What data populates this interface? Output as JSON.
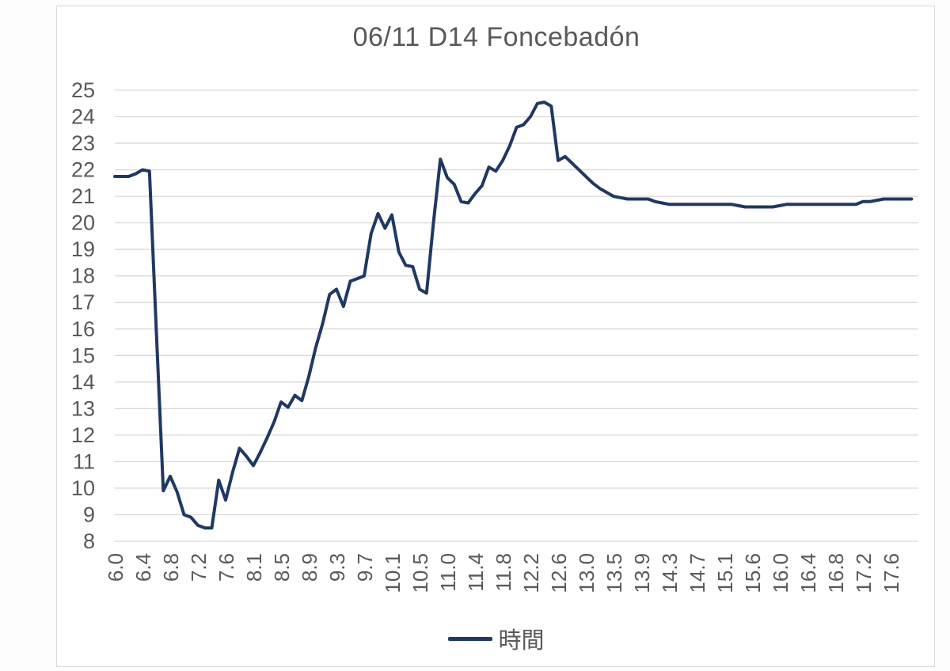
{
  "chart_data": {
    "type": "line",
    "title": "06/11 D14 Foncebadón",
    "x_labels": [
      "6.0",
      "6.4",
      "6.8",
      "7.2",
      "7.6",
      "8.1",
      "8.5",
      "8.9",
      "9.3",
      "9.7",
      "10.1",
      "10.5",
      "11.0",
      "11.4",
      "11.8",
      "12.2",
      "12.6",
      "13.0",
      "13.5",
      "13.9",
      "14.3",
      "14.7",
      "15.1",
      "15.6",
      "16.0",
      "16.4",
      "16.8",
      "17.2",
      "17.6"
    ],
    "label_every_n_points": 4,
    "y_axis": {
      "min": 8,
      "max": 25,
      "step": 1
    },
    "grid": "horizontal-only",
    "legend_position": "bottom-center",
    "series": [
      {
        "name": "時間",
        "color": "#1f3864",
        "values": [
          21.75,
          21.75,
          21.75,
          21.85,
          22,
          21.95,
          15.9,
          9.9,
          10.45,
          9.85,
          9,
          8.9,
          8.6,
          8.5,
          8.5,
          10.3,
          9.55,
          10.6,
          11.5,
          11.2,
          10.85,
          11.35,
          11.9,
          12.5,
          13.25,
          13.05,
          13.5,
          13.3,
          14.2,
          15.3,
          16.2,
          17.3,
          17.5,
          16.85,
          17.8,
          17.9,
          18,
          19.6,
          20.35,
          19.8,
          20.3,
          18.9,
          18.4,
          18.35,
          17.5,
          17.35,
          20,
          22.4,
          21.7,
          21.45,
          20.8,
          20.75,
          21.1,
          21.4,
          22.1,
          21.95,
          22.35,
          22.9,
          23.6,
          23.7,
          24,
          24.5,
          24.55,
          24.4,
          22.35,
          22.5,
          22.25,
          22,
          21.75,
          21.5,
          21.3,
          21.15,
          21,
          20.95,
          20.9,
          20.9,
          20.9,
          20.9,
          20.8,
          20.75,
          20.7,
          20.7,
          20.7,
          20.7,
          20.7,
          20.7,
          20.7,
          20.7,
          20.7,
          20.7,
          20.65,
          20.6,
          20.6,
          20.6,
          20.6,
          20.6,
          20.65,
          20.7,
          20.7,
          20.7,
          20.7,
          20.7,
          20.7,
          20.7,
          20.7,
          20.7,
          20.7,
          20.7,
          20.8,
          20.8,
          20.85,
          20.9,
          20.9,
          20.9,
          20.9,
          20.9
        ]
      }
    ]
  },
  "colors": {
    "series_line": "#1f3864",
    "axis_text": "#595959",
    "title_text": "#595959",
    "gridline": "#d9d9d9",
    "frame_border": "#d9d9d9",
    "plot_background": "#ffffff"
  }
}
